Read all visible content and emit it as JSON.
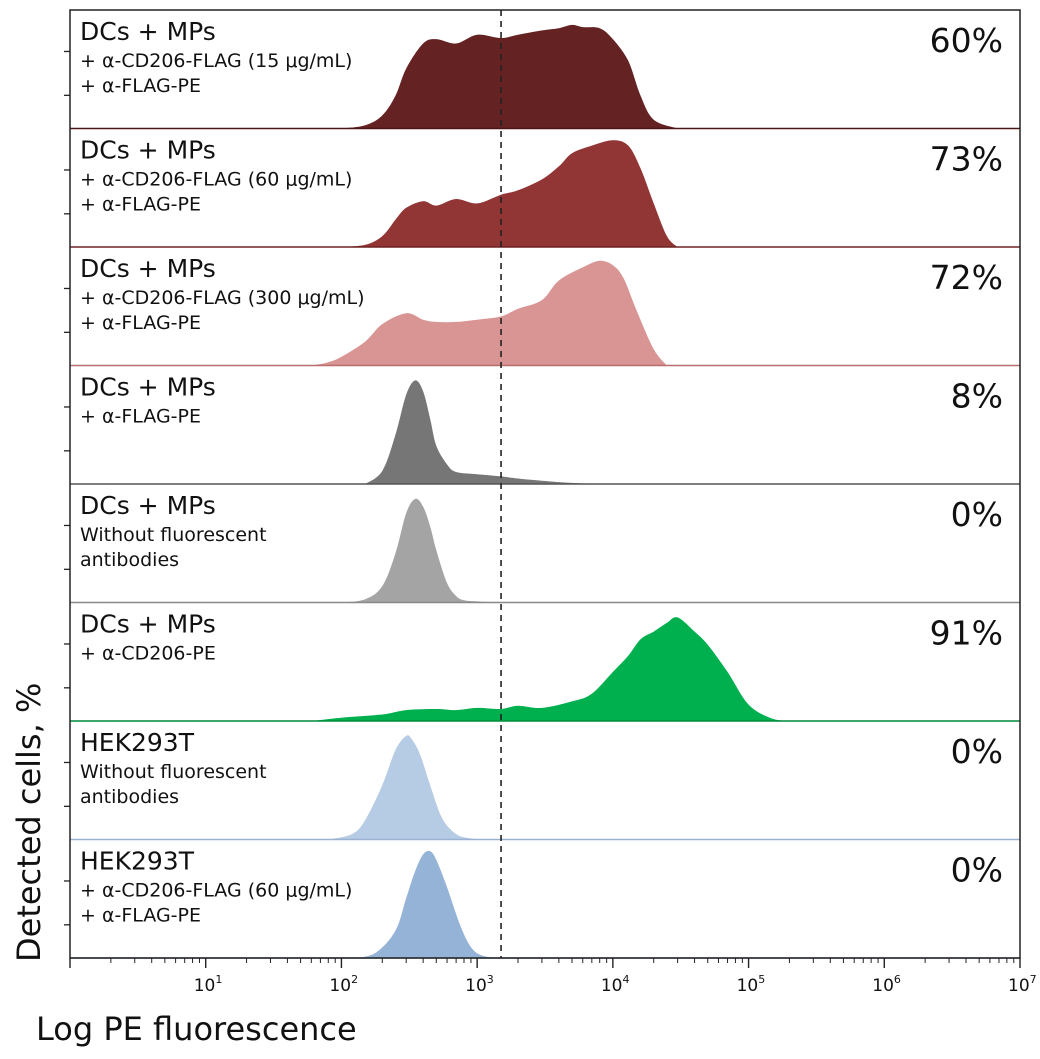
{
  "chart_data": {
    "type": "area",
    "xlabel": "Log PE fluorescence",
    "ylabel": "Detected cells, %",
    "x_scale": "log10",
    "xlim": [
      1,
      10000000
    ],
    "x_ticks": [
      {
        "value": 10,
        "base": "10",
        "exp": "1"
      },
      {
        "value": 100,
        "base": "10",
        "exp": "2"
      },
      {
        "value": 1000,
        "base": "10",
        "exp": "3"
      },
      {
        "value": 10000,
        "base": "10",
        "exp": "4"
      },
      {
        "value": 100000,
        "base": "10",
        "exp": "5"
      },
      {
        "value": 1000000,
        "base": "10",
        "exp": "6"
      },
      {
        "value": 10000000,
        "base": "10",
        "exp": "7"
      }
    ],
    "gate_threshold": 1500,
    "panels": [
      {
        "title": "DCs + MPs",
        "subtitle": [
          "+ α-CD206-FLAG (15 μg/mL)",
          "+ α-FLAG-PE"
        ],
        "percent": "60%",
        "fill": "#652222",
        "stroke": "#4a1515",
        "x": [
          100,
          150,
          200,
          250,
          300,
          400,
          500,
          700,
          1000,
          1500,
          2000,
          3000,
          4000,
          5000,
          6000,
          8000,
          10000,
          13000,
          16000,
          20000,
          30000
        ],
        "y": [
          0,
          3,
          12,
          30,
          55,
          78,
          82,
          78,
          86,
          83,
          86,
          90,
          92,
          95,
          93,
          92,
          82,
          62,
          30,
          8,
          0
        ]
      },
      {
        "title": "DCs + MPs",
        "subtitle": [
          "+ α-CD206-FLAG (60 μg/mL)",
          "+ α-FLAG-PE"
        ],
        "percent": "73%",
        "fill": "#913535",
        "stroke": "#6e2424",
        "x": [
          100,
          150,
          200,
          250,
          300,
          400,
          500,
          700,
          1000,
          1500,
          2000,
          3000,
          4000,
          5000,
          7000,
          10000,
          13000,
          16000,
          20000,
          25000,
          30000
        ],
        "y": [
          0,
          2,
          10,
          25,
          36,
          42,
          38,
          44,
          40,
          48,
          52,
          62,
          74,
          86,
          93,
          98,
          93,
          72,
          40,
          10,
          0
        ]
      },
      {
        "title": "DCs + MPs",
        "subtitle": [
          "+ α-CD206-FLAG (300 μg/mL)",
          "+ α-FLAG-PE"
        ],
        "percent": "72%",
        "fill": "#d99494",
        "stroke": "#b86e6e",
        "x": [
          60,
          80,
          100,
          150,
          200,
          300,
          400,
          500,
          700,
          1000,
          1500,
          2000,
          3000,
          4000,
          6000,
          8000,
          10000,
          12000,
          15000,
          20000,
          25000
        ],
        "y": [
          0,
          3,
          8,
          22,
          38,
          48,
          42,
          40,
          40,
          42,
          45,
          52,
          60,
          78,
          90,
          96,
          92,
          80,
          50,
          15,
          0
        ]
      },
      {
        "title": "DCs + MPs",
        "subtitle": [
          "+ α-FLAG-PE"
        ],
        "percent": "8%",
        "fill": "#767676",
        "stroke": "#555555",
        "x": [
          150,
          200,
          250,
          300,
          350,
          400,
          450,
          500,
          600,
          700,
          1000,
          1500,
          2000,
          3000,
          5000,
          8000
        ],
        "y": [
          0,
          12,
          45,
          82,
          95,
          85,
          60,
          35,
          18,
          11,
          9,
          7,
          5,
          3,
          1,
          0
        ]
      },
      {
        "title": "DCs + MPs",
        "subtitle": [
          "Without fluorescent",
          "antibodies"
        ],
        "percent": "0%",
        "fill": "#a4a4a4",
        "stroke": "#888888",
        "x": [
          100,
          150,
          200,
          250,
          300,
          350,
          400,
          450,
          500,
          600,
          700,
          800,
          1000,
          1500
        ],
        "y": [
          0,
          3,
          15,
          45,
          82,
          95,
          88,
          70,
          48,
          18,
          6,
          2,
          1,
          0
        ]
      },
      {
        "title": "DCs + MPs",
        "subtitle": [
          "+ α-CD206-PE"
        ],
        "percent": "91%",
        "fill": "#00b04f",
        "stroke": "#008a3c",
        "x": [
          60,
          100,
          200,
          300,
          500,
          700,
          1000,
          1500,
          2000,
          3000,
          5000,
          7000,
          10000,
          13000,
          16000,
          20000,
          25000,
          30000,
          40000,
          50000,
          70000,
          100000,
          150000,
          200000
        ],
        "y": [
          0,
          3,
          6,
          10,
          11,
          10,
          12,
          11,
          14,
          12,
          18,
          25,
          45,
          60,
          75,
          82,
          90,
          95,
          82,
          70,
          45,
          15,
          2,
          0
        ]
      },
      {
        "title": "HEK293T",
        "subtitle": [
          "Without fluorescent",
          "antibodies"
        ],
        "percent": "0%",
        "fill": "#b6cbe4",
        "stroke": "#9ab2d0",
        "x": [
          80,
          120,
          150,
          200,
          250,
          300,
          330,
          380,
          450,
          550,
          700,
          900,
          1200
        ],
        "y": [
          0,
          5,
          18,
          50,
          82,
          95,
          92,
          78,
          50,
          20,
          5,
          1,
          0
        ]
      },
      {
        "title": "HEK293T",
        "subtitle": [
          "+ α-CD206-FLAG (60 μg/mL)",
          "+ α-FLAG-PE"
        ],
        "percent": "0%",
        "fill": "#95b3d6",
        "stroke": "#7897c0",
        "x": [
          130,
          180,
          250,
          300,
          350,
          400,
          450,
          500,
          600,
          750,
          900,
          1100,
          1500
        ],
        "y": [
          0,
          5,
          25,
          55,
          80,
          95,
          98,
          90,
          65,
          30,
          10,
          2,
          0
        ]
      }
    ]
  }
}
